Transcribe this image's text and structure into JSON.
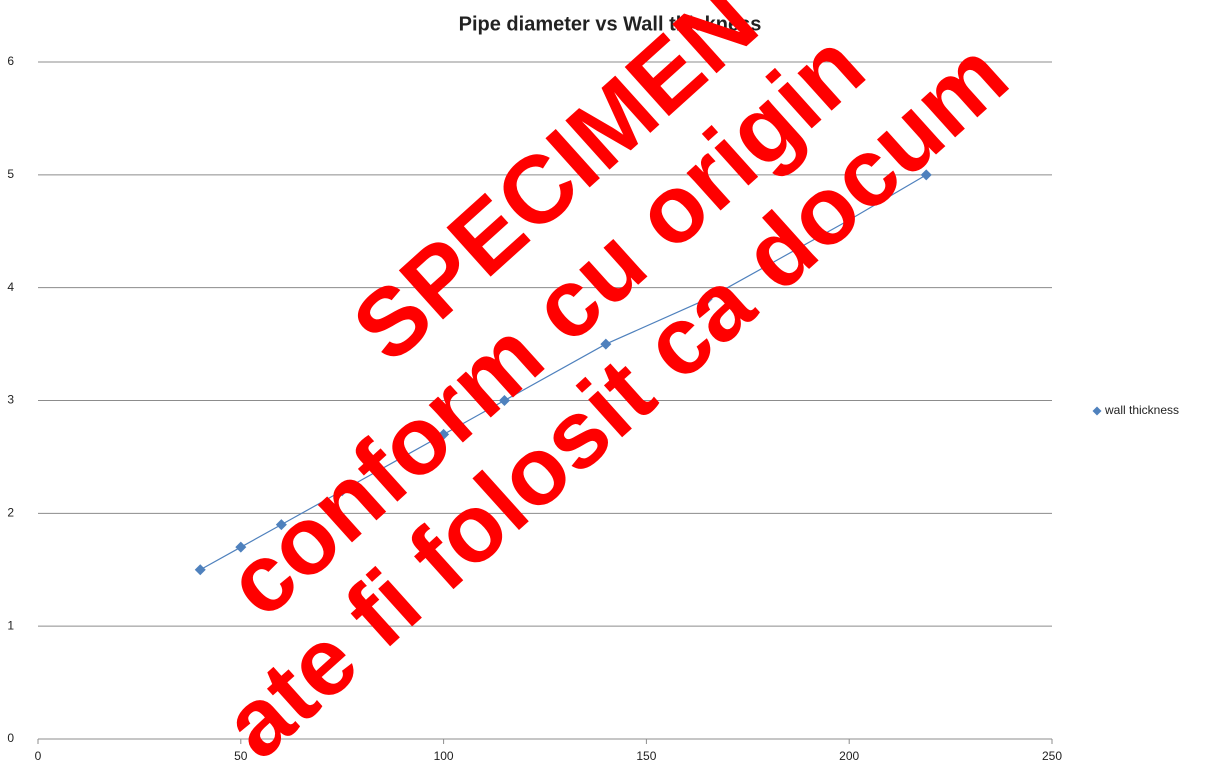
{
  "chart_data": {
    "type": "scatter",
    "title": "Pipe diameter vs Wall thickness",
    "series": [
      {
        "name": "wall thickness",
        "color": "#4f81bd",
        "x": [
          40,
          50,
          60,
          75,
          90,
          100,
          115,
          140,
          165,
          180,
          200,
          219
        ],
        "values": [
          1.5,
          1.7,
          1.9,
          2.2,
          2.5,
          2.7,
          3.0,
          3.5,
          3.9,
          4.2,
          4.6,
          5.0
        ]
      }
    ],
    "xlim": [
      0,
      250
    ],
    "xticks": [
      0,
      50,
      100,
      150,
      200,
      250
    ],
    "ylim": [
      0,
      6
    ],
    "yticks": [
      0,
      1,
      2,
      3,
      4,
      5,
      6
    ],
    "grid": true,
    "line": true,
    "legend": "right",
    "annotations": [
      "SPECIMEN",
      "conform cu origin",
      "ate fi folosit ca docum"
    ]
  }
}
